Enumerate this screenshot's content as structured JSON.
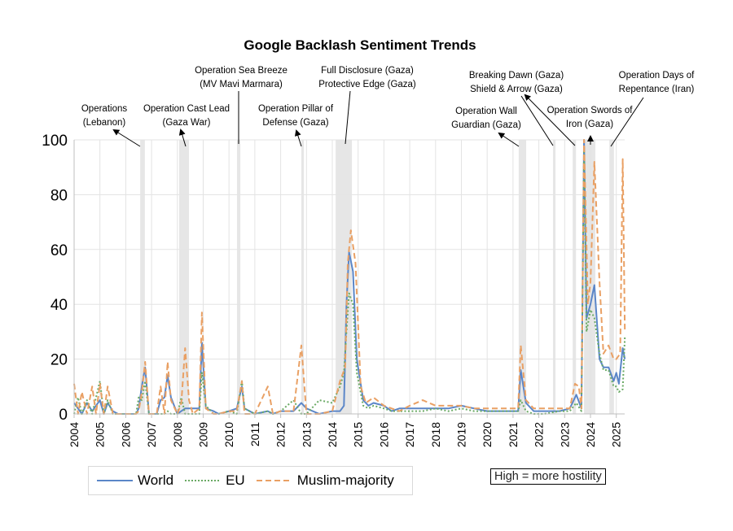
{
  "chart_data": {
    "type": "line",
    "title": "Google Backlash Sentiment Trends",
    "xlabel": "",
    "ylabel": "",
    "xlim": [
      2004,
      2025.33
    ],
    "ylim": [
      0,
      100
    ],
    "yticks": [
      0,
      20,
      40,
      60,
      80,
      100
    ],
    "xticks": [
      "2004",
      "2005",
      "2006",
      "2007",
      "2008",
      "2009",
      "2010",
      "2011",
      "2012",
      "2013",
      "2014",
      "2015",
      "2016",
      "2017",
      "2018",
      "2019",
      "2020",
      "2021",
      "2022",
      "2023",
      "2024",
      "2025"
    ],
    "grid": true,
    "legend_position": "bottom-left",
    "note": "High = more hostility",
    "shaded_periods": [
      [
        2006.56,
        2006.74
      ],
      [
        2008.07,
        2008.45
      ],
      [
        2010.31,
        2010.44
      ],
      [
        2012.8,
        2012.9
      ],
      [
        2014.13,
        2014.76
      ],
      [
        2021.22,
        2021.51
      ],
      [
        2022.55,
        2022.64
      ],
      [
        2023.31,
        2023.44
      ],
      [
        2023.75,
        2024.19
      ],
      [
        2024.73,
        2024.91
      ]
    ],
    "annotations": [
      {
        "lines": [
          "Operations",
          "(Lebanon)"
        ]
      },
      {
        "lines": [
          "Operation Cast Lead",
          "(Gaza War)"
        ]
      },
      {
        "lines": [
          "Operation Sea Breeze",
          "(MV Mavi Marmara)"
        ]
      },
      {
        "lines": [
          "Operation Pillar of",
          "Defense (Gaza)"
        ]
      },
      {
        "lines": [
          "Full Disclosure (Gaza)",
          "Protective Edge (Gaza)"
        ]
      },
      {
        "lines": [
          "Operation Wall",
          "Guardian (Gaza)"
        ]
      },
      {
        "lines": [
          "Breaking Dawn (Gaza)",
          "Shield & Arrow (Gaza)"
        ]
      },
      {
        "lines": [
          "Operation Swords of",
          "Iron (Gaza)"
        ]
      },
      {
        "lines": [
          "Operation Days of",
          "Repentance (Iran)"
        ]
      }
    ],
    "series": [
      {
        "name": "World",
        "color": "#5b86c8",
        "dash": "solid",
        "x": [
          2004.0,
          2004.15,
          2004.3,
          2004.5,
          2004.7,
          2004.85,
          2005.0,
          2005.15,
          2005.3,
          2005.5,
          2005.7,
          2006.0,
          2006.4,
          2006.5,
          2006.62,
          2006.75,
          2006.9,
          2007.2,
          2007.35,
          2007.5,
          2007.62,
          2007.75,
          2008.0,
          2008.15,
          2008.3,
          2008.6,
          2008.85,
          2008.95,
          2009.1,
          2009.4,
          2009.6,
          2010.0,
          2010.3,
          2010.5,
          2010.6,
          2011.0,
          2011.5,
          2011.7,
          2012.0,
          2012.5,
          2012.8,
          2013.0,
          2013.5,
          2014.0,
          2014.3,
          2014.45,
          2014.55,
          2014.65,
          2014.8,
          2014.95,
          2015.2,
          2015.4,
          2015.6,
          2016.0,
          2016.3,
          2016.6,
          2017.0,
          2017.5,
          2018.0,
          2018.5,
          2019.0,
          2019.5,
          2020.0,
          2020.5,
          2021.0,
          2021.2,
          2021.3,
          2021.5,
          2021.8,
          2022.2,
          2022.8,
          2023.2,
          2023.45,
          2023.65,
          2023.75,
          2023.85,
          2024.0,
          2024.15,
          2024.35,
          2024.5,
          2024.7,
          2024.9,
          2025.0,
          2025.1,
          2025.25,
          2025.33
        ],
        "y": [
          4,
          2,
          0,
          4,
          1,
          3,
          5,
          0,
          4,
          1,
          0,
          0,
          0,
          2,
          10,
          17,
          0,
          0,
          5,
          6,
          14,
          6,
          0,
          1,
          2,
          2,
          2,
          26,
          2,
          1,
          0,
          1,
          2,
          10,
          2,
          0,
          1,
          0,
          1,
          1,
          4,
          2,
          0,
          1,
          1,
          3,
          40,
          59,
          52,
          20,
          5,
          3,
          4,
          3,
          1,
          2,
          2,
          2,
          2,
          2,
          3,
          2,
          1,
          1,
          1,
          1,
          16,
          4,
          1,
          1,
          1,
          2,
          7,
          2,
          100,
          35,
          40,
          47,
          20,
          17,
          17,
          12,
          15,
          11,
          24,
          20
        ]
      },
      {
        "name": "EU",
        "color": "#6aaa64",
        "dash": "dotted",
        "x": [
          2004.0,
          2004.15,
          2004.3,
          2004.5,
          2004.7,
          2004.85,
          2005.0,
          2005.15,
          2005.3,
          2005.5,
          2005.7,
          2006.0,
          2006.4,
          2006.5,
          2006.62,
          2006.75,
          2006.9,
          2007.2,
          2007.35,
          2007.5,
          2007.62,
          2007.75,
          2008.0,
          2008.15,
          2008.3,
          2008.6,
          2008.85,
          2008.95,
          2009.1,
          2009.4,
          2009.6,
          2010.0,
          2010.3,
          2010.5,
          2010.6,
          2011.0,
          2011.5,
          2011.7,
          2012.0,
          2012.5,
          2012.8,
          2013.0,
          2013.5,
          2014.0,
          2014.3,
          2014.45,
          2014.55,
          2014.65,
          2014.8,
          2014.95,
          2015.2,
          2015.4,
          2015.6,
          2016.0,
          2016.3,
          2016.6,
          2017.0,
          2017.5,
          2018.0,
          2018.5,
          2019.0,
          2019.5,
          2020.0,
          2020.5,
          2021.0,
          2021.2,
          2021.3,
          2021.5,
          2021.8,
          2022.2,
          2022.8,
          2023.2,
          2023.45,
          2023.65,
          2023.75,
          2023.85,
          2024.0,
          2024.15,
          2024.35,
          2024.5,
          2024.7,
          2024.9,
          2025.0,
          2025.1,
          2025.25,
          2025.33
        ],
        "y": [
          0,
          6,
          0,
          5,
          0,
          6,
          12,
          0,
          5,
          0,
          0,
          0,
          0,
          6,
          5,
          12,
          0,
          0,
          0,
          0,
          1,
          0,
          0,
          6,
          0,
          0,
          0,
          15,
          3,
          0,
          0,
          1,
          0,
          12,
          2,
          0,
          1,
          0,
          1,
          5,
          0,
          0,
          5,
          4,
          10,
          15,
          30,
          44,
          40,
          15,
          3,
          2,
          3,
          2,
          1,
          1,
          1,
          1,
          2,
          1,
          2,
          1,
          1,
          1,
          1,
          1,
          5,
          1,
          0,
          0,
          1,
          1,
          4,
          1,
          97,
          30,
          38,
          35,
          22,
          16,
          16,
          10,
          10,
          8,
          9,
          28
        ]
      },
      {
        "name": "Muslim-majority",
        "color": "#e9a064",
        "dash": "dashed",
        "x": [
          2004.0,
          2004.15,
          2004.3,
          2004.5,
          2004.7,
          2004.85,
          2005.0,
          2005.15,
          2005.3,
          2005.5,
          2005.7,
          2006.0,
          2006.4,
          2006.5,
          2006.62,
          2006.75,
          2006.9,
          2007.2,
          2007.35,
          2007.5,
          2007.62,
          2007.75,
          2008.0,
          2008.15,
          2008.3,
          2008.45,
          2008.6,
          2008.85,
          2008.95,
          2009.1,
          2009.4,
          2009.6,
          2010.0,
          2010.3,
          2010.5,
          2010.6,
          2011.0,
          2011.5,
          2011.7,
          2012.0,
          2012.5,
          2012.8,
          2013.0,
          2013.5,
          2014.0,
          2014.3,
          2014.5,
          2014.6,
          2014.72,
          2014.9,
          2015.1,
          2015.3,
          2015.6,
          2016.0,
          2016.3,
          2016.6,
          2017.0,
          2017.5,
          2018.0,
          2018.5,
          2019.0,
          2019.5,
          2020.0,
          2020.5,
          2021.0,
          2021.2,
          2021.3,
          2021.5,
          2021.8,
          2022.2,
          2022.8,
          2023.2,
          2023.4,
          2023.55,
          2023.65,
          2023.75,
          2023.9,
          2024.0,
          2024.15,
          2024.35,
          2024.5,
          2024.7,
          2024.9,
          2025.0,
          2025.15,
          2025.25,
          2025.33
        ],
        "y": [
          11,
          0,
          8,
          0,
          10,
          0,
          11,
          0,
          10,
          0,
          0,
          0,
          0,
          1,
          8,
          19,
          0,
          0,
          10,
          0,
          19,
          5,
          0,
          4,
          24,
          5,
          0,
          2,
          37,
          2,
          0,
          0,
          1,
          1,
          12,
          0,
          0,
          10,
          0,
          1,
          1,
          25,
          0,
          0,
          1,
          12,
          17,
          55,
          67,
          55,
          10,
          4,
          6,
          3,
          2,
          1,
          3,
          5,
          3,
          3,
          3,
          2,
          2,
          2,
          2,
          2,
          25,
          5,
          2,
          2,
          2,
          2,
          11,
          10,
          2,
          100,
          40,
          48,
          92,
          48,
          22,
          25,
          20,
          20,
          22,
          93,
          30
        ]
      }
    ]
  }
}
